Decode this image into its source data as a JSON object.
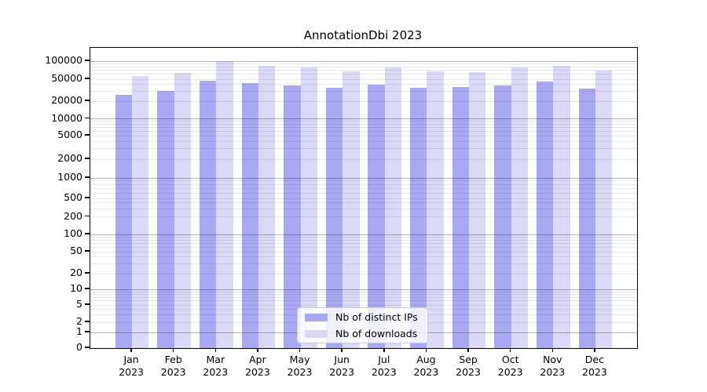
{
  "chart_data": {
    "type": "bar",
    "title": "AnnotationDbi 2023",
    "categories": [
      "Jan",
      "Feb",
      "Mar",
      "Apr",
      "May",
      "Jun",
      "Jul",
      "Aug",
      "Sep",
      "Oct",
      "Nov",
      "Dec"
    ],
    "year_label": "2023",
    "series": [
      {
        "name": "Nb of distinct IPs",
        "color": "#a9a9f3",
        "values": [
          26000,
          30500,
          47500,
          41800,
          38000,
          35000,
          40000,
          35200,
          36100,
          39000,
          45000,
          33400
        ]
      },
      {
        "name": "Nb of downloads",
        "color": "#dadaf8",
        "values": [
          56000,
          64000,
          100500,
          83000,
          78500,
          68500,
          77500,
          67600,
          65600,
          78000,
          84200,
          69000
        ]
      }
    ],
    "yticks": [
      0,
      1,
      2,
      5,
      10,
      20,
      50,
      100,
      200,
      500,
      1000,
      2000,
      5000,
      10000,
      20000,
      50000,
      100000
    ],
    "yscale": "log-like",
    "ylim": [
      0,
      170000
    ],
    "grid": "on",
    "legend_position": "lower center"
  }
}
